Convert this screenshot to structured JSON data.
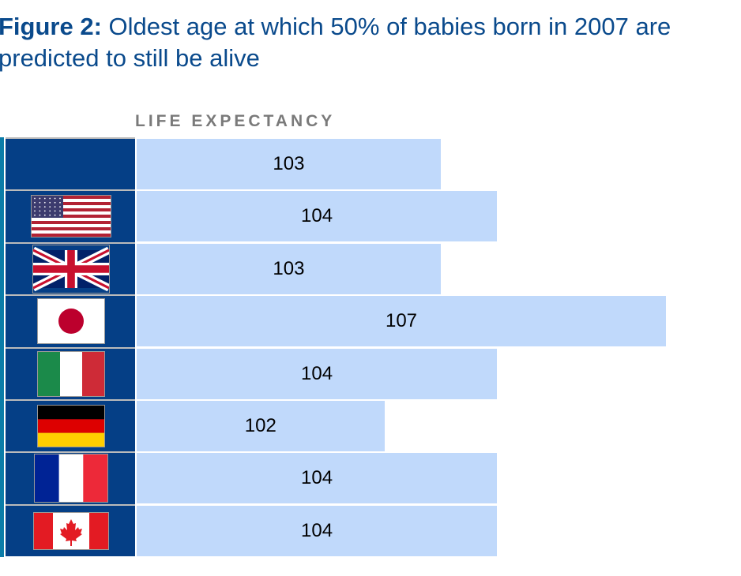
{
  "chart_data": {
    "type": "bar",
    "orientation": "horizontal",
    "title_bold": "Figure 2:",
    "title": "Oldest age at which 50% of babies born in 2007 are predicted to still be alive",
    "column_header": "LIFE EXPECTANCY",
    "categories": [
      "(blank)",
      "United States",
      "United Kingdom",
      "Japan",
      "Italy",
      "Germany",
      "France",
      "Canada"
    ],
    "flag_icons": [
      "none",
      "us-flag-icon",
      "uk-flag-icon",
      "japan-flag-icon",
      "italy-flag-icon",
      "germany-flag-icon",
      "france-flag-icon",
      "canada-flag-icon"
    ],
    "values": [
      103,
      104,
      103,
      107,
      104,
      102,
      104,
      104
    ],
    "xlim": [
      97.6,
      107
    ],
    "grid": false
  },
  "colors": {
    "title": "#0a4a8c",
    "bar": "#c0d9fb",
    "flag_cell": "#053f86"
  }
}
